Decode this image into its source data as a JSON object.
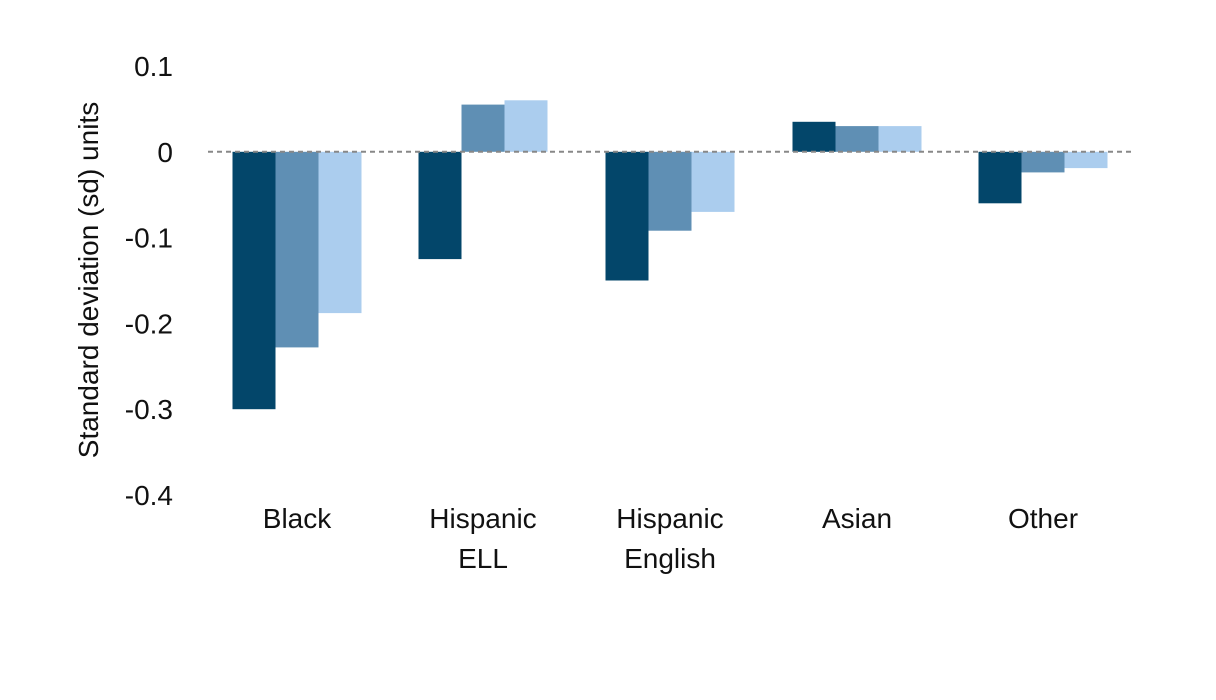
{
  "chart_data": {
    "type": "bar",
    "title": "",
    "xlabel": "",
    "ylabel": "Standard deviation (sd) units",
    "ylim": [
      -0.4,
      0.1
    ],
    "yticks": [
      0.1,
      0,
      -0.1,
      -0.2,
      -0.3,
      -0.4
    ],
    "ytick_labels": [
      "0.1",
      "0",
      "-0.1",
      "-0.2",
      "-0.3",
      "-0.4"
    ],
    "grid": false,
    "legend": "none",
    "zero_line": "dashed",
    "categories": [
      [
        "Black"
      ],
      [
        "Hispanic",
        "ELL"
      ],
      [
        "Hispanic",
        "English"
      ],
      [
        "Asian"
      ],
      [
        "Other"
      ]
    ],
    "series": [
      {
        "color": "#03466a",
        "values": [
          -0.3,
          -0.125,
          -0.15,
          0.035,
          -0.06
        ]
      },
      {
        "color": "#5f8fb4",
        "values": [
          -0.228,
          0.055,
          -0.092,
          0.03,
          -0.024
        ]
      },
      {
        "color": "#abcdee",
        "values": [
          -0.188,
          0.06,
          -0.07,
          0.03,
          -0.019
        ]
      }
    ],
    "zero_line_color": "#888888"
  }
}
